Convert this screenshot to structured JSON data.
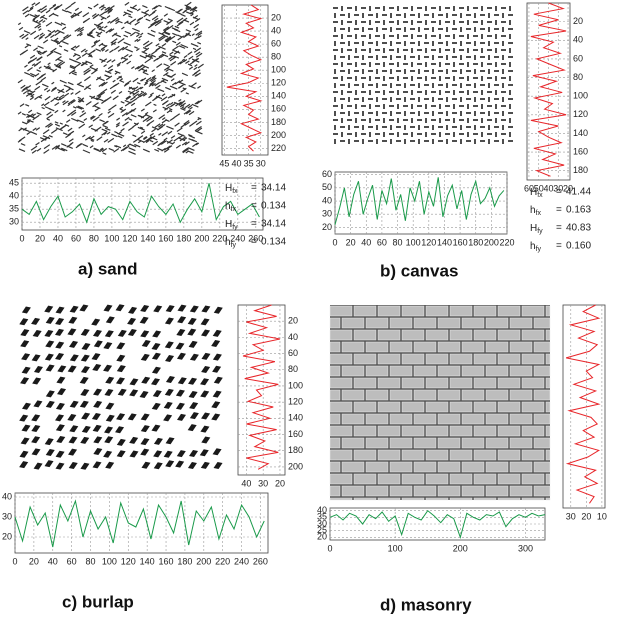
{
  "chart_data": [
    {
      "type": "line",
      "orientation": "horizontal",
      "color": "#1a9a4a",
      "grid": true,
      "xlim": [
        0,
        268
      ],
      "ylim": [
        27,
        47
      ],
      "xticks": [
        0,
        20,
        40,
        60,
        80,
        100,
        120,
        140,
        160,
        180,
        200,
        220,
        240,
        260
      ],
      "yticks": [
        30,
        35,
        40,
        45
      ],
      "x": [
        0,
        8,
        16,
        24,
        32,
        40,
        48,
        56,
        64,
        72,
        80,
        88,
        96,
        104,
        112,
        120,
        128,
        136,
        144,
        152,
        160,
        168,
        176,
        184,
        192,
        200,
        208,
        216,
        224,
        232,
        240,
        248,
        256,
        264
      ],
      "values": [
        35,
        33,
        38,
        31,
        36,
        40,
        32,
        34,
        37,
        30,
        39,
        33,
        36,
        35,
        31,
        38,
        34,
        32,
        40,
        36,
        33,
        37,
        30,
        35,
        39,
        34,
        45,
        31,
        36,
        38,
        33,
        35,
        37,
        32
      ]
    },
    {
      "type": "line",
      "orientation": "vertical",
      "color": "#e8262a",
      "grid": true,
      "xlim": [
        46,
        27
      ],
      "ylim": [
        0,
        230
      ],
      "xticks": [
        45,
        40,
        35,
        30
      ],
      "yticks": [
        20,
        40,
        60,
        80,
        100,
        120,
        140,
        160,
        180,
        200,
        220
      ],
      "y": [
        0,
        7,
        14,
        21,
        28,
        35,
        42,
        49,
        56,
        63,
        70,
        77,
        84,
        91,
        98,
        105,
        112,
        119,
        126,
        133,
        140,
        147,
        154,
        161,
        168,
        175,
        182,
        189,
        196,
        203,
        210,
        217,
        224
      ],
      "values": [
        34,
        31,
        37,
        30,
        36,
        33,
        38,
        32,
        35,
        31,
        37,
        34,
        30,
        36,
        33,
        38,
        31,
        35,
        44,
        32,
        36,
        30,
        37,
        33,
        35,
        31,
        38,
        34,
        30,
        36,
        32,
        35,
        33
      ]
    },
    {
      "type": "line",
      "orientation": "horizontal",
      "color": "#1a9a4a",
      "grid": true,
      "xlim": [
        0,
        220
      ],
      "ylim": [
        15,
        62
      ],
      "xticks": [
        0,
        20,
        40,
        60,
        80,
        100,
        120,
        140,
        160,
        180,
        200,
        220
      ],
      "yticks": [
        20,
        30,
        40,
        50,
        60
      ],
      "x": [
        0,
        6,
        12,
        18,
        24,
        30,
        36,
        42,
        48,
        54,
        60,
        66,
        72,
        78,
        84,
        90,
        96,
        102,
        108,
        114,
        120,
        126,
        132,
        138,
        144,
        150,
        156,
        162,
        168,
        174,
        180,
        186,
        192,
        198,
        204,
        210,
        216
      ],
      "values": [
        22,
        35,
        50,
        28,
        45,
        55,
        30,
        42,
        52,
        26,
        48,
        38,
        57,
        33,
        45,
        25,
        50,
        40,
        55,
        30,
        47,
        36,
        58,
        28,
        44,
        52,
        34,
        48,
        26,
        45,
        55,
        38,
        42,
        50,
        36,
        44,
        48
      ]
    },
    {
      "type": "line",
      "orientation": "vertical",
      "color": "#e8262a",
      "grid": true,
      "xlim": [
        62,
        18
      ],
      "ylim": [
        0,
        190
      ],
      "xticks": [
        60,
        50,
        40,
        30,
        20
      ],
      "yticks": [
        20,
        40,
        60,
        80,
        100,
        120,
        140,
        160,
        180
      ],
      "y": [
        0,
        6,
        12,
        18,
        24,
        30,
        36,
        42,
        48,
        54,
        60,
        66,
        72,
        78,
        84,
        90,
        96,
        102,
        108,
        114,
        120,
        126,
        132,
        138,
        144,
        150,
        156,
        162,
        168,
        174,
        180,
        186
      ],
      "values": [
        40,
        25,
        55,
        30,
        50,
        22,
        58,
        35,
        45,
        28,
        52,
        38,
        24,
        56,
        32,
        48,
        26,
        54,
        36,
        44,
        22,
        58,
        30,
        50,
        40,
        27,
        55,
        33,
        46,
        24,
        52,
        38
      ]
    },
    {
      "type": "line",
      "orientation": "horizontal",
      "color": "#1a9a4a",
      "grid": true,
      "xlim": [
        0,
        268
      ],
      "ylim": [
        12,
        42
      ],
      "xticks": [
        0,
        20,
        40,
        60,
        80,
        100,
        120,
        140,
        160,
        180,
        200,
        220,
        240,
        260
      ],
      "yticks": [
        20,
        30,
        40
      ],
      "x": [
        0,
        8,
        16,
        24,
        32,
        40,
        48,
        56,
        64,
        72,
        80,
        88,
        96,
        104,
        112,
        120,
        128,
        136,
        144,
        152,
        160,
        168,
        176,
        184,
        192,
        200,
        208,
        216,
        224,
        232,
        240,
        248,
        256,
        264
      ],
      "values": [
        30,
        18,
        35,
        26,
        32,
        15,
        36,
        28,
        38,
        20,
        33,
        24,
        30,
        17,
        37,
        27,
        25,
        34,
        19,
        36,
        30,
        22,
        38,
        16,
        33,
        28,
        35,
        19,
        31,
        24,
        36,
        30,
        20,
        28
      ]
    },
    {
      "type": "line",
      "orientation": "vertical",
      "color": "#e8262a",
      "grid": true,
      "xlim": [
        45,
        17
      ],
      "ylim": [
        0,
        210
      ],
      "xticks": [
        40,
        30,
        20
      ],
      "yticks": [
        20,
        40,
        60,
        80,
        100,
        120,
        140,
        160,
        180,
        200
      ],
      "y": [
        0,
        7,
        14,
        21,
        28,
        35,
        42,
        49,
        56,
        63,
        70,
        77,
        84,
        91,
        98,
        105,
        112,
        119,
        126,
        133,
        140,
        147,
        154,
        161,
        168,
        175,
        182,
        189,
        196,
        203
      ],
      "values": [
        25,
        35,
        22,
        40,
        28,
        38,
        20,
        36,
        30,
        42,
        23,
        37,
        27,
        41,
        21,
        34,
        31,
        39,
        24,
        36,
        26,
        40,
        22,
        38,
        29,
        35,
        21,
        40,
        27,
        33
      ]
    },
    {
      "type": "line",
      "orientation": "horizontal",
      "color": "#1a9a4a",
      "grid": true,
      "xlim": [
        0,
        330
      ],
      "ylim": [
        18,
        42
      ],
      "xticks": [
        0,
        100,
        200,
        300
      ],
      "yticks": [
        20,
        25,
        30,
        35,
        40
      ],
      "x": [
        0,
        10,
        20,
        30,
        40,
        50,
        60,
        70,
        80,
        90,
        100,
        110,
        120,
        130,
        140,
        150,
        160,
        170,
        180,
        190,
        200,
        210,
        220,
        230,
        240,
        250,
        260,
        270,
        280,
        290,
        300,
        310,
        320,
        330
      ],
      "values": [
        35,
        37,
        33,
        38,
        36,
        30,
        37,
        34,
        39,
        32,
        36,
        22,
        38,
        35,
        33,
        40,
        36,
        31,
        37,
        34,
        20,
        38,
        35,
        33,
        37,
        36,
        39,
        28,
        34,
        37,
        35,
        38,
        36,
        37
      ]
    },
    {
      "type": "line",
      "orientation": "vertical",
      "color": "#e8262a",
      "grid": true,
      "xlim": [
        35,
        8
      ],
      "ylim": [
        0,
        215
      ],
      "xticks": [
        30,
        20,
        10
      ],
      "y": [
        0,
        7,
        14,
        21,
        28,
        35,
        42,
        49,
        56,
        63,
        70,
        77,
        84,
        91,
        98,
        105,
        112,
        119,
        126,
        133,
        140,
        147,
        154,
        161,
        168,
        175,
        182,
        189,
        196,
        203,
        210
      ],
      "values": [
        14,
        22,
        12,
        30,
        15,
        25,
        13,
        18,
        33,
        12,
        20,
        16,
        28,
        14,
        24,
        12,
        31,
        17,
        13,
        22,
        15,
        27,
        12,
        19,
        32,
        14,
        21,
        13,
        26,
        15,
        18
      ]
    }
  ],
  "panels": [
    {
      "caption": "a) sand",
      "stats": [
        {
          "symbol": "H",
          "sub": "fx",
          "sign": "=",
          "value": "34.14"
        },
        {
          "symbol": "h",
          "sub": "fx",
          "sign": "=",
          "value": "0.134"
        },
        {
          "symbol": "H",
          "sub": "fy",
          "sign": "=",
          "value": "34.14"
        },
        {
          "symbol": "h",
          "sub": "fy",
          "sign": "=",
          "value": "0.134"
        }
      ]
    },
    {
      "caption": "b) canvas",
      "stats": [
        {
          "symbol": "H",
          "sub": "fx",
          "sign": "=",
          "value": "41.44"
        },
        {
          "symbol": "h",
          "sub": "fx",
          "sign": "=",
          "value": "0.163"
        },
        {
          "symbol": "H",
          "sub": "fy",
          "sign": "=",
          "value": "40.83"
        },
        {
          "symbol": "h",
          "sub": "fy",
          "sign": "=",
          "value": "0.160"
        }
      ]
    },
    {
      "caption": "c) burlap"
    },
    {
      "caption": "d) masonry"
    }
  ]
}
